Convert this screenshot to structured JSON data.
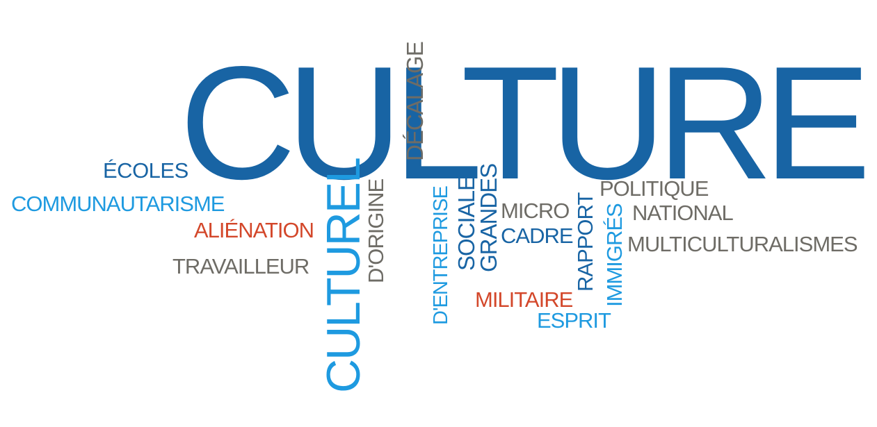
{
  "palette": {
    "dark_blue": "#1864a4",
    "light_blue": "#1e9ae0",
    "gray": "#6e6c66",
    "red": "#d3472a"
  },
  "words": {
    "culture": "CULTURE",
    "ecoles": "ÉCOLES",
    "communautarisme": "COMMUNAUTARISME",
    "alienation": "ALIÉNATION",
    "travailleur": "TRAVAILLEUR",
    "culturel": "CULTUREL",
    "dorigine": "D'ORIGINE",
    "decalage": "DÉCALAGE",
    "dentreprise": "D'ENTREPRISE",
    "sociale": "SOCIALE",
    "grandes": "GRANDES",
    "micro": "MICRO",
    "cadre": "CADRE",
    "militaire": "MILITAIRE",
    "esprit": "ESPRIT",
    "rapport": "RAPPORT",
    "immigres": "IMMIGRÉS",
    "politique": "POLITIQUE",
    "national": "NATIONAL",
    "multiculturalismes": "MULTICULTURALISMES"
  }
}
